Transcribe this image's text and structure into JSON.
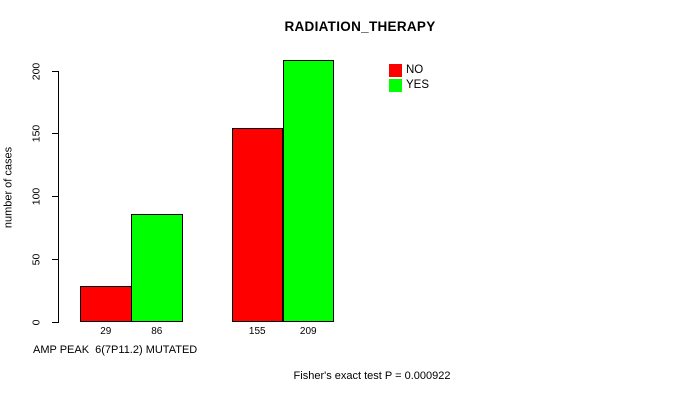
{
  "page": {
    "background": "#FFFFFF",
    "text_color": "#000000"
  },
  "chart_data": {
    "type": "bar",
    "title": "RADIATION_THERAPY",
    "xlabel": "AMP PEAK  6(7P11.2) MUTATED",
    "ylabel": "number of cases",
    "ylim": [
      0,
      200
    ],
    "yticks": [
      0,
      50,
      100,
      150,
      200
    ],
    "grid": false,
    "categories": [
      "",
      ""
    ],
    "series": [
      {
        "name": "NO",
        "color": "#FF0000",
        "values": [
          29,
          155
        ]
      },
      {
        "name": "YES",
        "color": "#00FF00",
        "values": [
          86,
          209
        ]
      }
    ],
    "bar_value_labels": [
      "29",
      "86",
      "155",
      "209"
    ],
    "bar_border_color": "#000000",
    "legend": {
      "position": "top-right-inside",
      "entries": [
        {
          "label": "NO",
          "color": "#FF0000"
        },
        {
          "label": "YES",
          "color": "#00FF00"
        }
      ]
    },
    "annotation": "Fisher's exact test P = 0.000922"
  }
}
